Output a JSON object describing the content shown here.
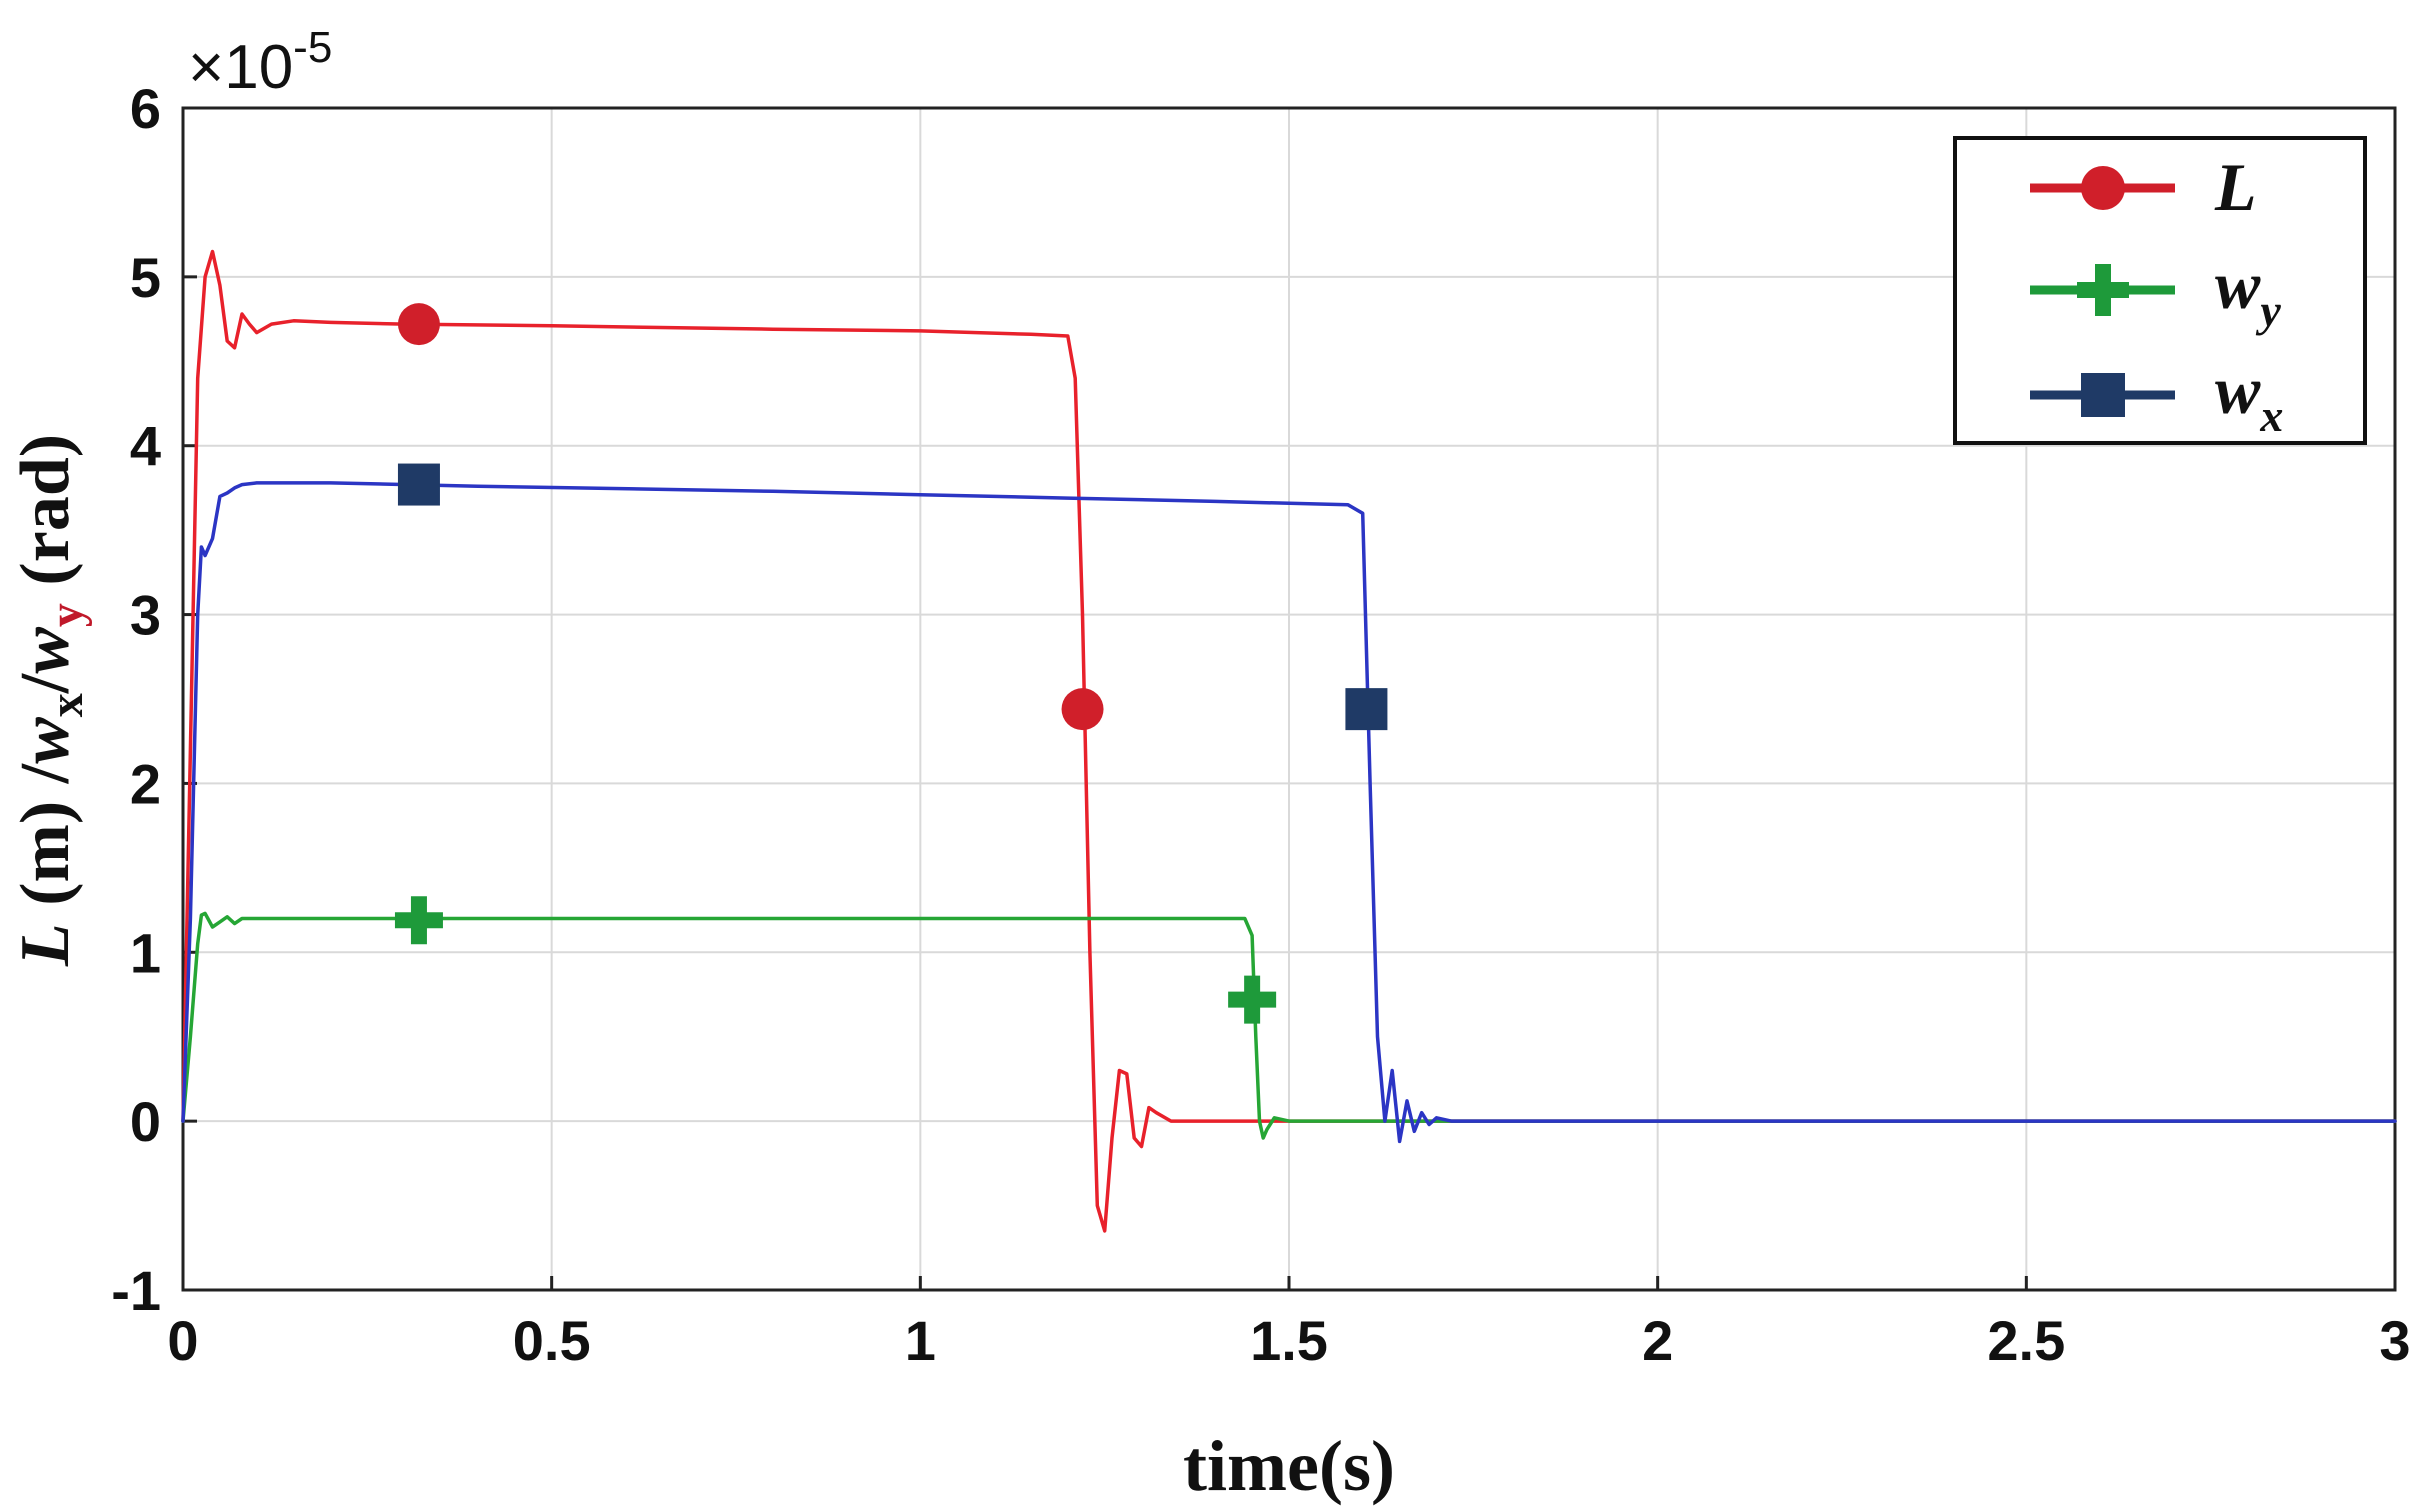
{
  "chart_data": {
    "type": "line",
    "title": "",
    "xlabel": "time(s)",
    "ylabel": {
      "prefix": "L",
      "unit": " (m) /",
      "wx_base": "w",
      "wx_sub": "x",
      "sep": "/",
      "wy_base": "w",
      "wy_sub": "y",
      "suffix": " (rad)"
    },
    "y_multiplier": {
      "base": "×10",
      "exponent": "-5"
    },
    "xlim": [
      0,
      3
    ],
    "ylim": [
      -1,
      6
    ],
    "xticks": [
      "0",
      "0.5",
      "1",
      "1.5",
      "2",
      "2.5",
      "3"
    ],
    "yticks": [
      "-1",
      "0",
      "1",
      "2",
      "3",
      "4",
      "5",
      "6"
    ],
    "grid": true,
    "legend_position": "top-right",
    "series": [
      {
        "name": "L",
        "color": "#e8212b",
        "marker_color": "#d01f2a",
        "marker": "circle",
        "x": [
          0,
          0.01,
          0.02,
          0.03,
          0.04,
          0.05,
          0.06,
          0.07,
          0.08,
          0.09,
          0.1,
          0.12,
          0.15,
          0.2,
          0.3,
          0.5,
          0.8,
          1.0,
          1.15,
          1.2,
          1.21,
          1.22,
          1.23,
          1.24,
          1.25,
          1.26,
          1.27,
          1.28,
          1.29,
          1.3,
          1.31,
          1.32,
          1.34,
          1.36,
          1.4,
          1.5,
          2.0,
          3.0
        ],
        "y": [
          0,
          2.2,
          4.4,
          5.0,
          5.15,
          4.95,
          4.62,
          4.58,
          4.78,
          4.72,
          4.67,
          4.72,
          4.74,
          4.73,
          4.72,
          4.71,
          4.69,
          4.68,
          4.66,
          4.65,
          4.4,
          3.0,
          1.0,
          -0.5,
          -0.65,
          -0.1,
          0.3,
          0.28,
          -0.1,
          -0.15,
          0.08,
          0.05,
          0.0,
          0.0,
          0.0,
          0.0,
          0.0,
          0.0
        ],
        "markers": [
          [
            0.32,
            4.72
          ],
          [
            1.22,
            2.44
          ]
        ]
      },
      {
        "name": "w_y",
        "color": "#26a635",
        "marker_color": "#1e9a3a",
        "marker": "plus",
        "x": [
          0,
          0.01,
          0.02,
          0.025,
          0.03,
          0.04,
          0.05,
          0.06,
          0.07,
          0.08,
          0.1,
          0.2,
          0.5,
          1.0,
          1.3,
          1.44,
          1.45,
          1.455,
          1.46,
          1.465,
          1.47,
          1.48,
          1.5,
          2.0,
          3.0
        ],
        "y": [
          0,
          0.5,
          1.05,
          1.22,
          1.23,
          1.15,
          1.18,
          1.21,
          1.17,
          1.2,
          1.2,
          1.2,
          1.2,
          1.2,
          1.2,
          1.2,
          1.1,
          0.5,
          0.0,
          -0.1,
          -0.05,
          0.02,
          0.0,
          0.0,
          0.0
        ],
        "markers": [
          [
            0.32,
            1.19
          ],
          [
            1.45,
            0.72
          ]
        ]
      },
      {
        "name": "w_x",
        "color": "#2b35c4",
        "marker_color": "#1f3a66",
        "marker": "square",
        "x": [
          0,
          0.01,
          0.02,
          0.025,
          0.03,
          0.04,
          0.05,
          0.06,
          0.07,
          0.08,
          0.1,
          0.15,
          0.2,
          0.4,
          0.8,
          1.0,
          1.2,
          1.4,
          1.58,
          1.6,
          1.61,
          1.62,
          1.63,
          1.64,
          1.65,
          1.66,
          1.67,
          1.68,
          1.69,
          1.7,
          1.72,
          1.75,
          2.0,
          3.0
        ],
        "y": [
          0,
          1.2,
          3.0,
          3.4,
          3.35,
          3.45,
          3.7,
          3.72,
          3.75,
          3.77,
          3.78,
          3.78,
          3.78,
          3.76,
          3.73,
          3.71,
          3.69,
          3.67,
          3.65,
          3.6,
          2.0,
          0.5,
          0.0,
          0.3,
          -0.12,
          0.12,
          -0.06,
          0.05,
          -0.02,
          0.02,
          0.0,
          0.0,
          0.0,
          0.0
        ],
        "markers": [
          [
            0.32,
            3.77
          ],
          [
            1.605,
            2.44
          ]
        ]
      }
    ]
  }
}
